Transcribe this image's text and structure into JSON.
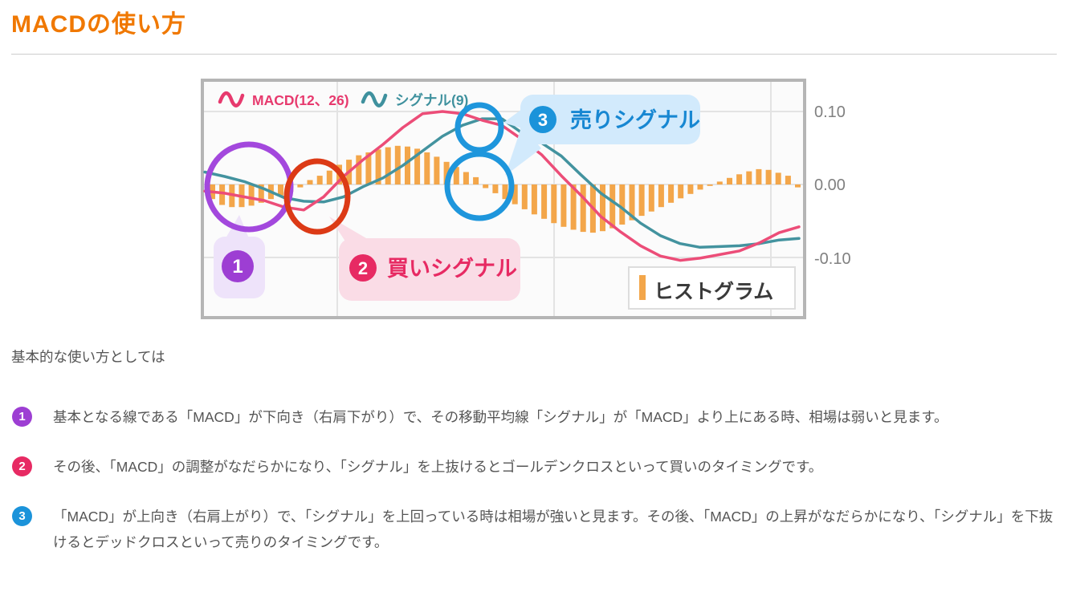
{
  "page": {
    "title": "MACDの使い方",
    "intro": "基本的な使い方としては"
  },
  "theme": {
    "title_color": "#f07800",
    "text_color": "#555555",
    "macd_color": "#ec4d78",
    "signal_color": "#43939f",
    "histogram_color": "#f3a64a",
    "grid_color": "#e3e3e3",
    "frame_color": "#b5b5b5",
    "plot_bg": "#fbfbfb",
    "axis_label_color": "#808080"
  },
  "chart": {
    "legend": [
      {
        "icon": "wave-icon",
        "label": "MACD(12、26)",
        "color": "#e73a6e"
      },
      {
        "icon": "wave-icon",
        "label": "シグナル(9)",
        "color": "#3f919e"
      }
    ],
    "y_axis_labels": [
      "0.10",
      "0.00",
      "-0.10"
    ],
    "annotations": [
      {
        "number": "1",
        "label": "",
        "badge_color": "#9d3ed3",
        "circle_color": "#a348dd",
        "bubble_color": "#eee3fa",
        "label_color": "#9d3ed3"
      },
      {
        "number": "2",
        "label": "買いシグナル",
        "badge_color": "#e72a63",
        "circle_color": "#dc3a16",
        "bubble_color": "#fadce6",
        "label_color": "#e72a63"
      },
      {
        "number": "3",
        "label": "売りシグナル",
        "badge_color": "#1b93da",
        "circle_color": "#1e96dc",
        "bubble_color": "#d2eafc",
        "label_color": "#1787d2"
      }
    ],
    "histogram_legend": {
      "label": "ヒストグラム",
      "bar_color": "#f3a64a",
      "text_color": "#3a3a3a"
    }
  },
  "chart_data": {
    "type": "line+bar (MACD indicator)",
    "title": "MACDの使い方チャート例",
    "ylim": [
      -0.18,
      0.145
    ],
    "y_ticks": [
      0.1,
      0.0,
      -0.1
    ],
    "grid": true,
    "legend_position": "top-left",
    "series": [
      {
        "name": "MACD(12、26)",
        "type": "line",
        "values": [
          -0.009,
          -0.012,
          -0.017,
          -0.022,
          -0.031,
          -0.035,
          -0.017,
          0.011,
          0.034,
          0.055,
          0.078,
          0.097,
          0.1,
          0.097,
          0.088,
          0.081,
          0.062,
          0.041,
          0.012,
          -0.015,
          -0.044,
          -0.065,
          -0.084,
          -0.098,
          -0.104,
          -0.101,
          -0.096,
          -0.091,
          -0.08,
          -0.066,
          -0.058
        ]
      },
      {
        "name": "シグナル(9)",
        "type": "line",
        "values": [
          0.017,
          0.011,
          0.004,
          -0.006,
          -0.018,
          -0.023,
          -0.024,
          -0.017,
          -0.003,
          0.009,
          0.026,
          0.046,
          0.066,
          0.081,
          0.09,
          0.09,
          0.071,
          0.057,
          0.039,
          0.013,
          -0.012,
          -0.031,
          -0.053,
          -0.07,
          -0.081,
          -0.086,
          -0.085,
          -0.084,
          -0.081,
          -0.076,
          -0.074
        ]
      },
      {
        "name": "ヒストグラム",
        "type": "bar",
        "values": [
          -0.02,
          -0.028,
          -0.031,
          -0.031,
          -0.029,
          -0.025,
          -0.02,
          -0.015,
          -0.01,
          -0.004,
          0.006,
          0.012,
          0.019,
          0.027,
          0.034,
          0.04,
          0.044,
          0.048,
          0.051,
          0.053,
          0.052,
          0.049,
          0.044,
          0.038,
          0.031,
          0.024,
          0.017,
          0.01,
          -0.005,
          -0.012,
          -0.02,
          -0.027,
          -0.034,
          -0.041,
          -0.047,
          -0.053,
          -0.058,
          -0.062,
          -0.065,
          -0.066,
          -0.064,
          -0.06,
          -0.055,
          -0.049,
          -0.043,
          -0.037,
          -0.031,
          -0.025,
          -0.019,
          -0.013,
          -0.007,
          -0.002,
          0.004,
          0.009,
          0.014,
          0.018,
          0.021,
          0.02,
          0.016,
          0.012,
          -0.004
        ]
      }
    ]
  },
  "list": {
    "items": [
      {
        "number": "1",
        "badge_color": "#9d3ed3",
        "text": "基本となる線である「MACD」が下向き（右肩下がり）で、その移動平均線「シグナル」が「MACD」より上にある時、相場は弱いと見ます。"
      },
      {
        "number": "2",
        "badge_color": "#e72a63",
        "text": "その後、「MACD」の調整がなだらかになり、「シグナル」を上抜けるとゴールデンクロスといって買いのタイミングです。"
      },
      {
        "number": "3",
        "badge_color": "#1b93da",
        "text": "「MACD」が上向き（右肩上がり）で、「シグナル」を上回っている時は相場が強いと見ます。その後、「MACD」の上昇がなだらかになり、「シグナル」を下抜けるとデッドクロスといって売りのタイミングです。"
      }
    ]
  }
}
